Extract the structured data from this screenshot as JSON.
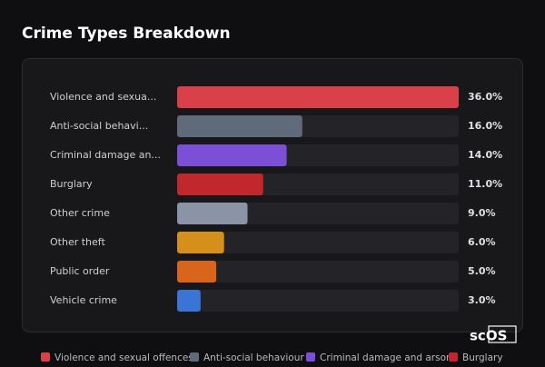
{
  "chart_data": {
    "type": "hbar",
    "title": "Crime Types Breakdown",
    "categories": [
      "Violence and sexua...",
      "Anti-social behavi...",
      "Criminal damage an...",
      "Burglary",
      "Other crime",
      "Other theft",
      "Public order",
      "Vehicle crime"
    ],
    "values": [
      36,
      16,
      14,
      11,
      9,
      6,
      5,
      3
    ],
    "value_labels": [
      "36.0%",
      "16.0%",
      "14.0%",
      "11.0%",
      "9.0%",
      "6.0%",
      "5.0%",
      "3.0%"
    ],
    "colors": [
      "#d9404a",
      "#5f6b7b",
      "#7b4fd6",
      "#c0282d",
      "#8a94a6",
      "#d4901a",
      "#d8651b",
      "#3a74d6"
    ],
    "xlim": [
      0,
      36
    ],
    "legend": [
      {
        "name": "Violence and sexual offences",
        "color": "#d9404a"
      },
      {
        "name": "Anti-social behaviour",
        "color": "#5f6b7b"
      },
      {
        "name": "Criminal damage and arson",
        "color": "#7b4fd6"
      },
      {
        "name": "Burglary",
        "color": "#c0282d"
      }
    ]
  },
  "watermark": "scOS"
}
